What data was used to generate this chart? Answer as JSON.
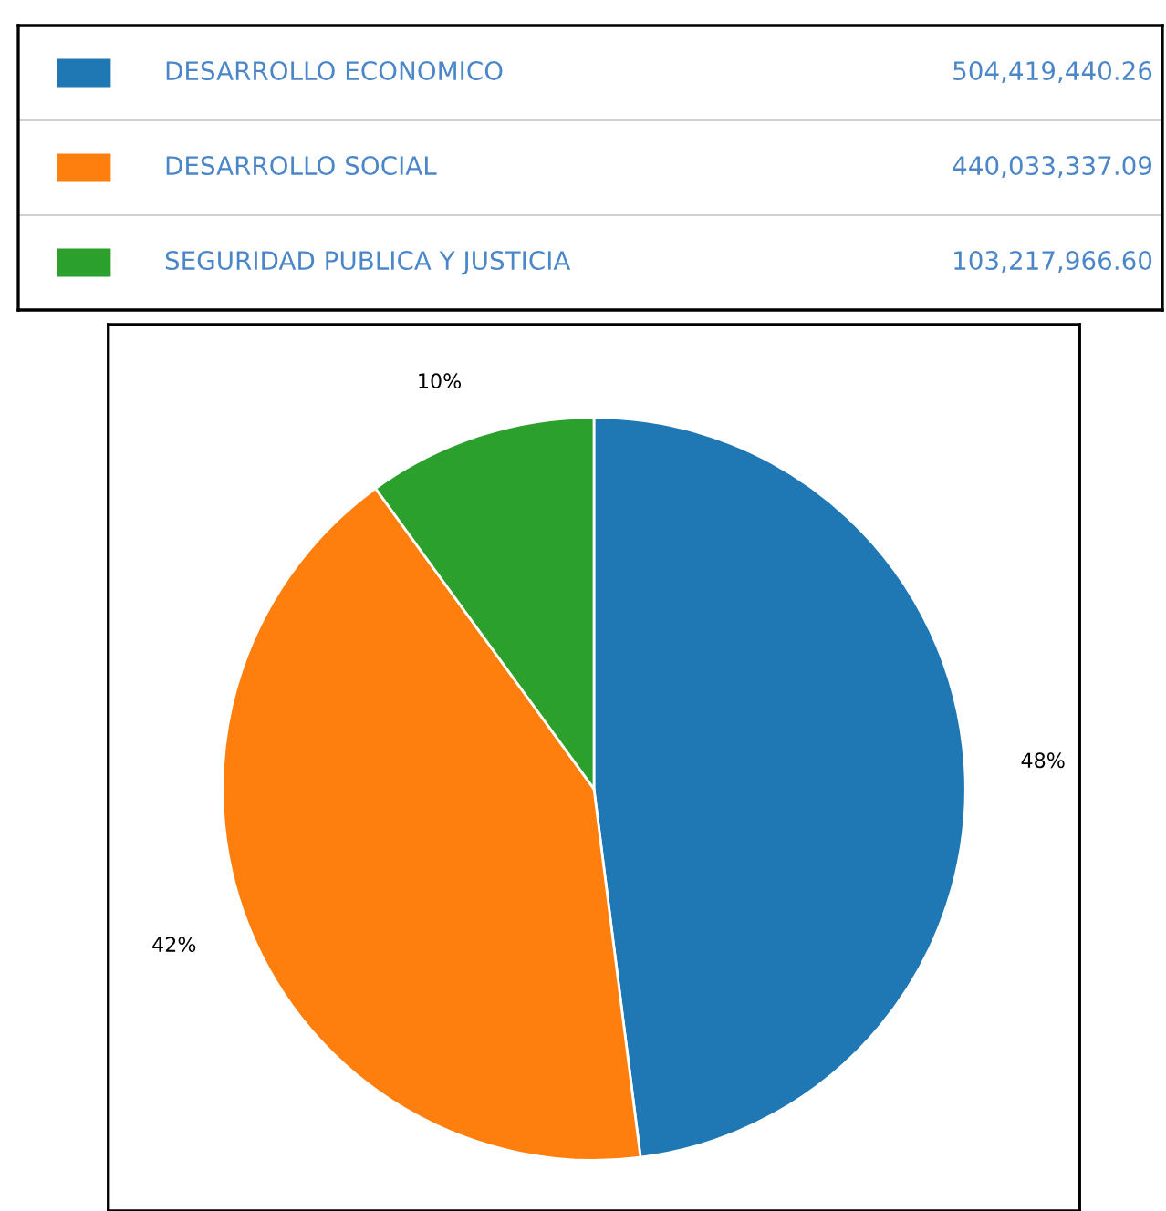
{
  "chart_data": {
    "type": "pie",
    "categories": [
      "DESARROLLO ECONOMICO",
      "DESARROLLO SOCIAL",
      "SEGURIDAD PUBLICA Y JUSTICIA"
    ],
    "values": [
      48,
      42,
      10
    ],
    "annotations": [
      "504,419,440.26",
      "440,033,337.09",
      "103,217,966.60"
    ],
    "colors": [
      "#1f77b4",
      "#ff7f0e",
      "#2ca02c"
    ],
    "value_labels": [
      "48%",
      "42%",
      "10%"
    ],
    "data_labels": true,
    "legend": "top"
  }
}
